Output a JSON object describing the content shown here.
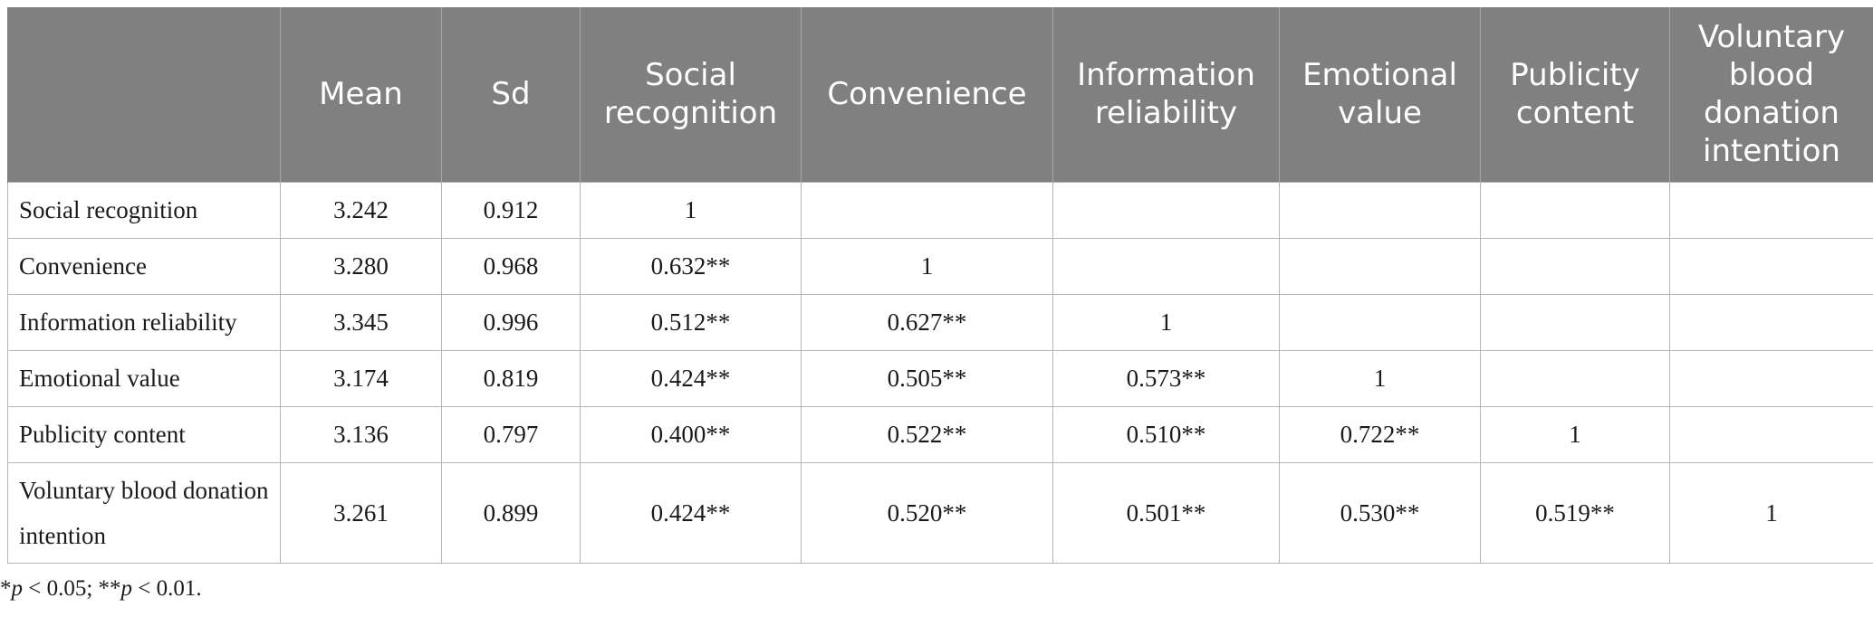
{
  "table": {
    "headers": [
      "",
      "Mean",
      "Sd",
      "Social recognition",
      "Convenience",
      "Information reliability",
      "Emotional value",
      "Publicity content",
      "Voluntary blood donation intention"
    ],
    "rows": [
      [
        "Social recognition",
        "3.242",
        "0.912",
        "1",
        "",
        "",
        "",
        "",
        ""
      ],
      [
        "Convenience",
        "3.280",
        "0.968",
        "0.632**",
        "1",
        "",
        "",
        "",
        ""
      ],
      [
        "Information reliability",
        "3.345",
        "0.996",
        "0.512**",
        "0.627**",
        "1",
        "",
        "",
        ""
      ],
      [
        "Emotional value",
        "3.174",
        "0.819",
        "0.424**",
        "0.505**",
        "0.573**",
        "1",
        "",
        ""
      ],
      [
        "Publicity content",
        "3.136",
        "0.797",
        "0.400**",
        "0.522**",
        "0.510**",
        "0.722**",
        "1",
        ""
      ],
      [
        "Voluntary blood donation intention",
        "3.261",
        "0.899",
        "0.424**",
        "0.520**",
        "0.501**",
        "0.530**",
        "0.519**",
        "1"
      ]
    ]
  },
  "footnote": {
    "star1": "*",
    "p1": "p",
    "cond1": " < 0.05; ",
    "star2": "**",
    "p2": "p",
    "cond2": " < 0.01."
  },
  "colors": {
    "header_bg": "#808080",
    "header_text": "#ffffff",
    "grid": "#b5b5b5"
  }
}
